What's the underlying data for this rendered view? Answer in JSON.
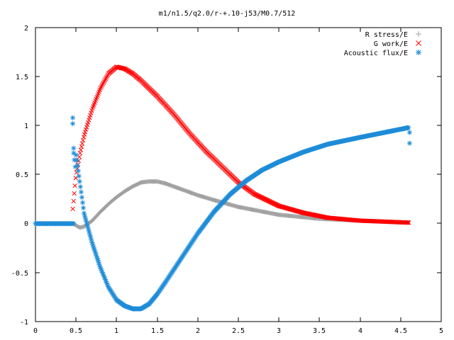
{
  "chart_data": {
    "type": "scatter",
    "title": "m1/n1.5/q2.0/r-+.10-j53/M0.7/512",
    "xlabel": "",
    "ylabel": "",
    "xlim": [
      0,
      5
    ],
    "ylim": [
      -1,
      2
    ],
    "x_ticks": [
      "0",
      "0.5",
      "1",
      "1.5",
      "2",
      "2.5",
      "3",
      "3.5",
      "4",
      "4.5",
      "5"
    ],
    "y_ticks": [
      "2",
      "1.5",
      "1",
      "0.5",
      "0",
      "-0.5",
      "-1"
    ],
    "grid": false,
    "legend_position": "top-right",
    "series": [
      {
        "name": "R stress/E",
        "marker": "+",
        "color": "#a0a0a0",
        "keypoints": [
          [
            0.47,
            0.0
          ],
          [
            0.52,
            -0.03
          ],
          [
            0.55,
            -0.04
          ],
          [
            0.6,
            -0.03
          ],
          [
            0.7,
            0.03
          ],
          [
            0.8,
            0.12
          ],
          [
            0.9,
            0.2
          ],
          [
            1.0,
            0.27
          ],
          [
            1.1,
            0.33
          ],
          [
            1.2,
            0.38
          ],
          [
            1.3,
            0.42
          ],
          [
            1.4,
            0.43
          ],
          [
            1.5,
            0.43
          ],
          [
            1.6,
            0.41
          ],
          [
            1.7,
            0.38
          ],
          [
            1.8,
            0.35
          ],
          [
            2.0,
            0.29
          ],
          [
            2.2,
            0.24
          ],
          [
            2.5,
            0.17
          ],
          [
            3.0,
            0.09
          ],
          [
            3.5,
            0.05
          ],
          [
            4.0,
            0.03
          ],
          [
            4.6,
            0.01
          ]
        ]
      },
      {
        "name": "G work/E",
        "marker": "x",
        "color": "#ff0000",
        "keypoints": [
          [
            0.46,
            0.15
          ],
          [
            0.5,
            0.5
          ],
          [
            0.55,
            0.72
          ],
          [
            0.6,
            0.9
          ],
          [
            0.7,
            1.17
          ],
          [
            0.8,
            1.38
          ],
          [
            0.9,
            1.53
          ],
          [
            1.0,
            1.6
          ],
          [
            1.1,
            1.58
          ],
          [
            1.2,
            1.53
          ],
          [
            1.3,
            1.46
          ],
          [
            1.5,
            1.3
          ],
          [
            1.7,
            1.12
          ],
          [
            1.9,
            0.92
          ],
          [
            2.1,
            0.74
          ],
          [
            2.3,
            0.58
          ],
          [
            2.5,
            0.42
          ],
          [
            2.7,
            0.3
          ],
          [
            3.0,
            0.18
          ],
          [
            3.3,
            0.11
          ],
          [
            3.6,
            0.06
          ],
          [
            4.0,
            0.03
          ],
          [
            4.6,
            0.01
          ]
        ]
      },
      {
        "name": "Acoustic flux/E",
        "marker": "*",
        "color": "#1e8cd8",
        "keypoints": [
          [
            0.5,
            0.7
          ],
          [
            0.55,
            0.4
          ],
          [
            0.6,
            0.1
          ],
          [
            0.65,
            -0.05
          ],
          [
            0.7,
            -0.2
          ],
          [
            0.8,
            -0.45
          ],
          [
            0.9,
            -0.65
          ],
          [
            1.0,
            -0.78
          ],
          [
            1.1,
            -0.84
          ],
          [
            1.2,
            -0.87
          ],
          [
            1.3,
            -0.87
          ],
          [
            1.4,
            -0.82
          ],
          [
            1.5,
            -0.72
          ],
          [
            1.6,
            -0.6
          ],
          [
            1.8,
            -0.35
          ],
          [
            2.0,
            -0.1
          ],
          [
            2.2,
            0.12
          ],
          [
            2.4,
            0.3
          ],
          [
            2.6,
            0.44
          ],
          [
            2.8,
            0.55
          ],
          [
            3.0,
            0.63
          ],
          [
            3.3,
            0.73
          ],
          [
            3.6,
            0.81
          ],
          [
            4.0,
            0.88
          ],
          [
            4.3,
            0.93
          ],
          [
            4.6,
            0.98
          ]
        ],
        "leading_zero_range": [
          0,
          0.47
        ],
        "outliers": [
          [
            0.46,
            1.08
          ],
          [
            0.46,
            1.02
          ],
          [
            0.47,
            0.77
          ],
          [
            0.47,
            0.72
          ],
          [
            0.48,
            0.65
          ],
          [
            0.49,
            0.58
          ],
          [
            4.61,
            0.93
          ],
          [
            4.61,
            0.82
          ]
        ]
      }
    ]
  }
}
